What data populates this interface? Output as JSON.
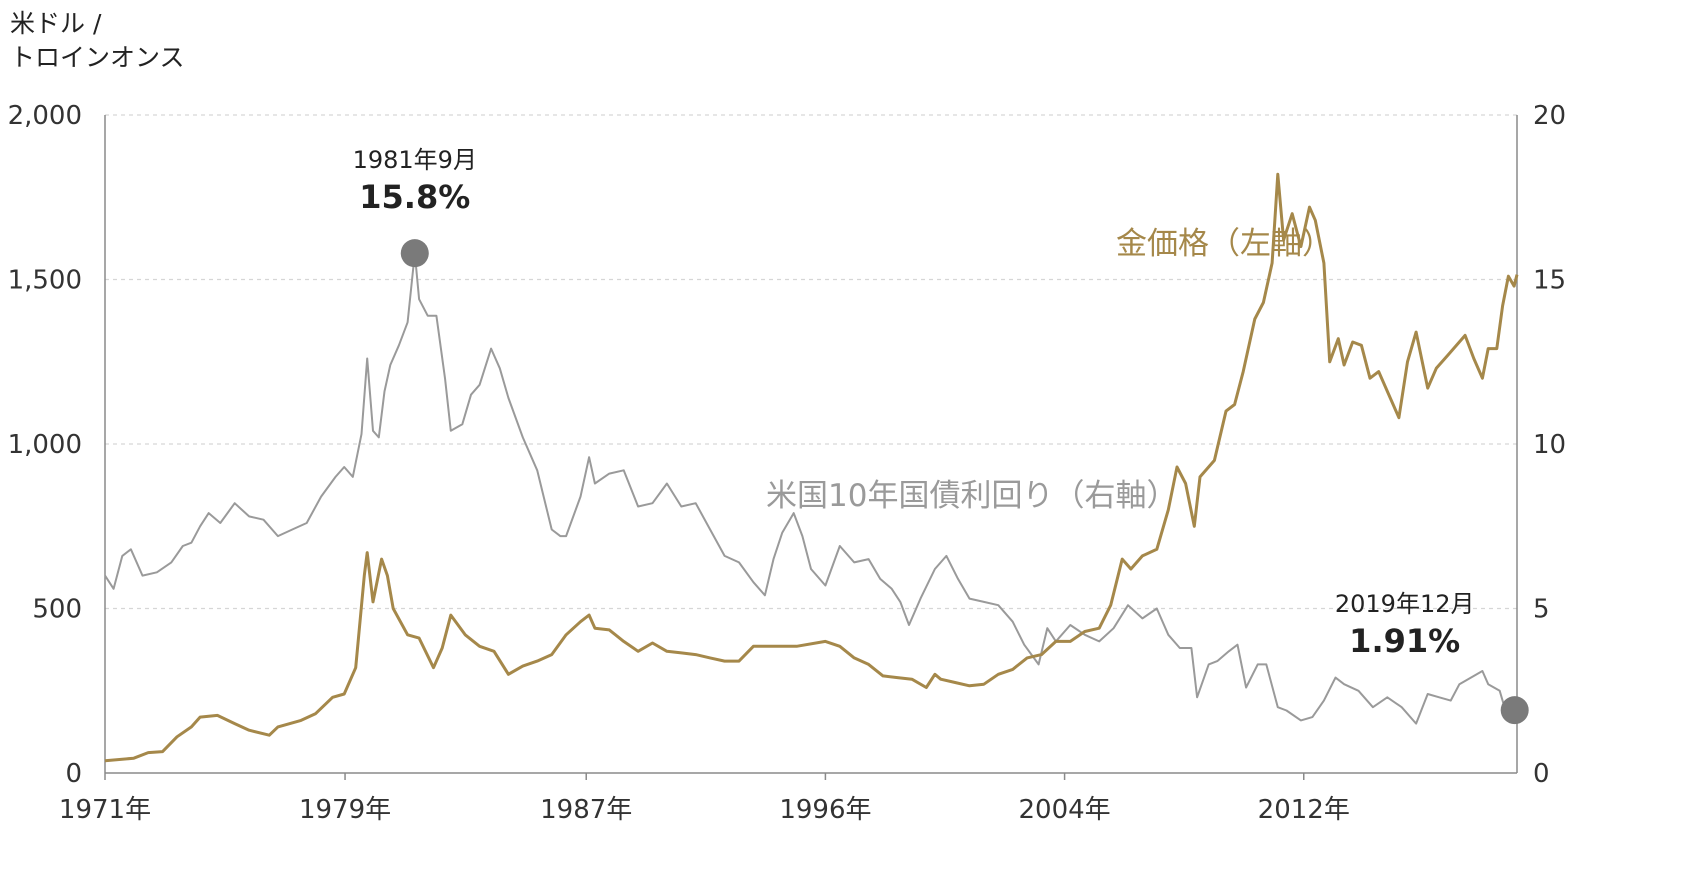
{
  "chart_data": {
    "type": "line",
    "y_left_label_line1": "米ドル /",
    "y_left_label_line2": "トロインオンス",
    "y_left_ticks": [
      "0",
      "500",
      "1,000",
      "1,500",
      "2,000"
    ],
    "y_right_ticks": [
      "0",
      "5",
      "10",
      "15",
      "20"
    ],
    "ylim_left": [
      0,
      2000
    ],
    "ylim_right": [
      0,
      20
    ],
    "xlim": [
      1971.0,
      2020.0
    ],
    "x_ticks": [
      {
        "label": "1971年",
        "value": 1971.0
      },
      {
        "label": "1979年",
        "value": 1979.33
      },
      {
        "label": "1987年",
        "value": 1987.7
      },
      {
        "label": "1996年",
        "value": 1996.0
      },
      {
        "label": "2004年",
        "value": 2004.3
      },
      {
        "label": "2012年",
        "value": 2012.6
      }
    ],
    "grid": "horizontal-dashed",
    "series": [
      {
        "name": "金価格（左軸）",
        "axis": "left",
        "color": "#a5884a",
        "points": [
          [
            1971.0,
            37
          ],
          [
            1972.0,
            45
          ],
          [
            1972.5,
            62
          ],
          [
            1973.0,
            65
          ],
          [
            1973.5,
            110
          ],
          [
            1974.0,
            140
          ],
          [
            1974.3,
            170
          ],
          [
            1974.9,
            175
          ],
          [
            1975.5,
            150
          ],
          [
            1976.0,
            130
          ],
          [
            1976.7,
            115
          ],
          [
            1977.0,
            140
          ],
          [
            1977.8,
            160
          ],
          [
            1978.3,
            180
          ],
          [
            1978.9,
            230
          ],
          [
            1979.3,
            240
          ],
          [
            1979.7,
            320
          ],
          [
            1980.0,
            600
          ],
          [
            1980.1,
            670
          ],
          [
            1980.3,
            520
          ],
          [
            1980.6,
            650
          ],
          [
            1980.8,
            600
          ],
          [
            1981.0,
            500
          ],
          [
            1981.5,
            420
          ],
          [
            1981.9,
            410
          ],
          [
            1982.4,
            320
          ],
          [
            1982.7,
            380
          ],
          [
            1983.0,
            480
          ],
          [
            1983.5,
            420
          ],
          [
            1984.0,
            385
          ],
          [
            1984.5,
            370
          ],
          [
            1985.0,
            300
          ],
          [
            1985.5,
            325
          ],
          [
            1986.0,
            340
          ],
          [
            1986.5,
            360
          ],
          [
            1987.0,
            420
          ],
          [
            1987.5,
            460
          ],
          [
            1987.8,
            480
          ],
          [
            1988.0,
            440
          ],
          [
            1988.5,
            435
          ],
          [
            1989.0,
            400
          ],
          [
            1989.5,
            370
          ],
          [
            1990.0,
            395
          ],
          [
            1990.5,
            370
          ],
          [
            1991.0,
            365
          ],
          [
            1991.5,
            360
          ],
          [
            1992.0,
            350
          ],
          [
            1992.5,
            340
          ],
          [
            1993.0,
            340
          ],
          [
            1993.5,
            385
          ],
          [
            1994.0,
            385
          ],
          [
            1995.0,
            385
          ],
          [
            1996.0,
            400
          ],
          [
            1996.5,
            385
          ],
          [
            1997.0,
            350
          ],
          [
            1997.5,
            330
          ],
          [
            1998.0,
            295
          ],
          [
            1998.5,
            290
          ],
          [
            1999.0,
            285
          ],
          [
            1999.5,
            260
          ],
          [
            1999.8,
            300
          ],
          [
            2000.0,
            285
          ],
          [
            2000.5,
            275
          ],
          [
            2001.0,
            265
          ],
          [
            2001.5,
            270
          ],
          [
            2002.0,
            300
          ],
          [
            2002.5,
            315
          ],
          [
            2003.0,
            350
          ],
          [
            2003.5,
            360
          ],
          [
            2004.0,
            400
          ],
          [
            2004.5,
            400
          ],
          [
            2005.0,
            430
          ],
          [
            2005.5,
            440
          ],
          [
            2005.9,
            510
          ],
          [
            2006.3,
            650
          ],
          [
            2006.6,
            620
          ],
          [
            2007.0,
            660
          ],
          [
            2007.5,
            680
          ],
          [
            2007.9,
            800
          ],
          [
            2008.2,
            930
          ],
          [
            2008.5,
            880
          ],
          [
            2008.8,
            750
          ],
          [
            2009.0,
            900
          ],
          [
            2009.5,
            950
          ],
          [
            2009.9,
            1100
          ],
          [
            2010.2,
            1120
          ],
          [
            2010.5,
            1220
          ],
          [
            2010.9,
            1380
          ],
          [
            2011.2,
            1430
          ],
          [
            2011.5,
            1550
          ],
          [
            2011.7,
            1820
          ],
          [
            2011.9,
            1620
          ],
          [
            2012.2,
            1700
          ],
          [
            2012.5,
            1600
          ],
          [
            2012.8,
            1720
          ],
          [
            2013.0,
            1680
          ],
          [
            2013.3,
            1550
          ],
          [
            2013.5,
            1250
          ],
          [
            2013.8,
            1320
          ],
          [
            2014.0,
            1240
          ],
          [
            2014.3,
            1310
          ],
          [
            2014.6,
            1300
          ],
          [
            2014.9,
            1200
          ],
          [
            2015.2,
            1220
          ],
          [
            2015.6,
            1140
          ],
          [
            2015.9,
            1080
          ],
          [
            2016.2,
            1250
          ],
          [
            2016.5,
            1340
          ],
          [
            2016.9,
            1170
          ],
          [
            2017.2,
            1230
          ],
          [
            2017.6,
            1270
          ],
          [
            2017.9,
            1300
          ],
          [
            2018.2,
            1330
          ],
          [
            2018.5,
            1260
          ],
          [
            2018.8,
            1200
          ],
          [
            2019.0,
            1290
          ],
          [
            2019.3,
            1290
          ],
          [
            2019.5,
            1420
          ],
          [
            2019.7,
            1510
          ],
          [
            2019.9,
            1480
          ],
          [
            2020.0,
            1515
          ]
        ]
      },
      {
        "name": "米国10年国債利回り（右軸）",
        "axis": "right",
        "color": "#9a9a9a",
        "points": [
          [
            1971.0,
            6.0
          ],
          [
            1971.3,
            5.6
          ],
          [
            1971.6,
            6.6
          ],
          [
            1971.9,
            6.8
          ],
          [
            1972.3,
            6.0
          ],
          [
            1972.8,
            6.1
          ],
          [
            1973.3,
            6.4
          ],
          [
            1973.7,
            6.9
          ],
          [
            1974.0,
            7.0
          ],
          [
            1974.3,
            7.5
          ],
          [
            1974.6,
            7.9
          ],
          [
            1975.0,
            7.6
          ],
          [
            1975.5,
            8.2
          ],
          [
            1976.0,
            7.8
          ],
          [
            1976.5,
            7.7
          ],
          [
            1977.0,
            7.2
          ],
          [
            1977.5,
            7.4
          ],
          [
            1978.0,
            7.6
          ],
          [
            1978.5,
            8.4
          ],
          [
            1979.0,
            9.0
          ],
          [
            1979.3,
            9.3
          ],
          [
            1979.6,
            9.0
          ],
          [
            1979.9,
            10.3
          ],
          [
            1980.1,
            12.6
          ],
          [
            1980.3,
            10.4
          ],
          [
            1980.5,
            10.2
          ],
          [
            1980.7,
            11.6
          ],
          [
            1980.9,
            12.4
          ],
          [
            1981.2,
            13.0
          ],
          [
            1981.5,
            13.7
          ],
          [
            1981.75,
            15.8
          ],
          [
            1981.9,
            14.4
          ],
          [
            1982.2,
            13.9
          ],
          [
            1982.5,
            13.9
          ],
          [
            1982.8,
            12.0
          ],
          [
            1983.0,
            10.4
          ],
          [
            1983.4,
            10.6
          ],
          [
            1983.7,
            11.5
          ],
          [
            1984.0,
            11.8
          ],
          [
            1984.4,
            12.9
          ],
          [
            1984.7,
            12.3
          ],
          [
            1985.0,
            11.4
          ],
          [
            1985.5,
            10.2
          ],
          [
            1986.0,
            9.2
          ],
          [
            1986.5,
            7.4
          ],
          [
            1986.8,
            7.2
          ],
          [
            1987.0,
            7.2
          ],
          [
            1987.5,
            8.4
          ],
          [
            1987.8,
            9.6
          ],
          [
            1988.0,
            8.8
          ],
          [
            1988.5,
            9.1
          ],
          [
            1989.0,
            9.2
          ],
          [
            1989.5,
            8.1
          ],
          [
            1990.0,
            8.2
          ],
          [
            1990.5,
            8.8
          ],
          [
            1991.0,
            8.1
          ],
          [
            1991.5,
            8.2
          ],
          [
            1992.0,
            7.4
          ],
          [
            1992.5,
            6.6
          ],
          [
            1993.0,
            6.4
          ],
          [
            1993.5,
            5.8
          ],
          [
            1993.9,
            5.4
          ],
          [
            1994.2,
            6.5
          ],
          [
            1994.5,
            7.3
          ],
          [
            1994.9,
            7.9
          ],
          [
            1995.2,
            7.2
          ],
          [
            1995.5,
            6.2
          ],
          [
            1996.0,
            5.7
          ],
          [
            1996.5,
            6.9
          ],
          [
            1997.0,
            6.4
          ],
          [
            1997.5,
            6.5
          ],
          [
            1997.9,
            5.9
          ],
          [
            1998.3,
            5.6
          ],
          [
            1998.6,
            5.2
          ],
          [
            1998.9,
            4.5
          ],
          [
            1999.3,
            5.3
          ],
          [
            1999.8,
            6.2
          ],
          [
            2000.2,
            6.6
          ],
          [
            2000.6,
            5.9
          ],
          [
            2001.0,
            5.3
          ],
          [
            2001.5,
            5.2
          ],
          [
            2002.0,
            5.1
          ],
          [
            2002.5,
            4.6
          ],
          [
            2002.9,
            3.9
          ],
          [
            2003.4,
            3.3
          ],
          [
            2003.7,
            4.4
          ],
          [
            2004.0,
            4.0
          ],
          [
            2004.5,
            4.5
          ],
          [
            2005.0,
            4.2
          ],
          [
            2005.5,
            4.0
          ],
          [
            2006.0,
            4.4
          ],
          [
            2006.5,
            5.1
          ],
          [
            2007.0,
            4.7
          ],
          [
            2007.5,
            5.0
          ],
          [
            2007.9,
            4.2
          ],
          [
            2008.3,
            3.8
          ],
          [
            2008.7,
            3.8
          ],
          [
            2008.9,
            2.3
          ],
          [
            2009.3,
            3.3
          ],
          [
            2009.6,
            3.4
          ],
          [
            2010.0,
            3.7
          ],
          [
            2010.3,
            3.9
          ],
          [
            2010.6,
            2.6
          ],
          [
            2011.0,
            3.3
          ],
          [
            2011.3,
            3.3
          ],
          [
            2011.7,
            2.0
          ],
          [
            2012.0,
            1.9
          ],
          [
            2012.5,
            1.6
          ],
          [
            2012.9,
            1.7
          ],
          [
            2013.3,
            2.2
          ],
          [
            2013.7,
            2.9
          ],
          [
            2014.0,
            2.7
          ],
          [
            2014.5,
            2.5
          ],
          [
            2015.0,
            2.0
          ],
          [
            2015.5,
            2.3
          ],
          [
            2016.0,
            2.0
          ],
          [
            2016.5,
            1.5
          ],
          [
            2016.9,
            2.4
          ],
          [
            2017.3,
            2.3
          ],
          [
            2017.7,
            2.2
          ],
          [
            2018.0,
            2.7
          ],
          [
            2018.4,
            2.9
          ],
          [
            2018.8,
            3.1
          ],
          [
            2019.0,
            2.7
          ],
          [
            2019.4,
            2.5
          ],
          [
            2019.6,
            1.9
          ],
          [
            2019.9,
            1.91
          ]
        ]
      }
    ],
    "annotations": [
      {
        "date": "1981年9月",
        "value": "15.8%",
        "x": 1981.75,
        "y": 15.8,
        "axis": "right",
        "placement": "above"
      },
      {
        "date": "2019年12月",
        "value": "1.91%",
        "x": 2019.92,
        "y": 1.91,
        "axis": "right",
        "placement": "left-above"
      }
    ],
    "marker_color": "#7a7a7a"
  }
}
